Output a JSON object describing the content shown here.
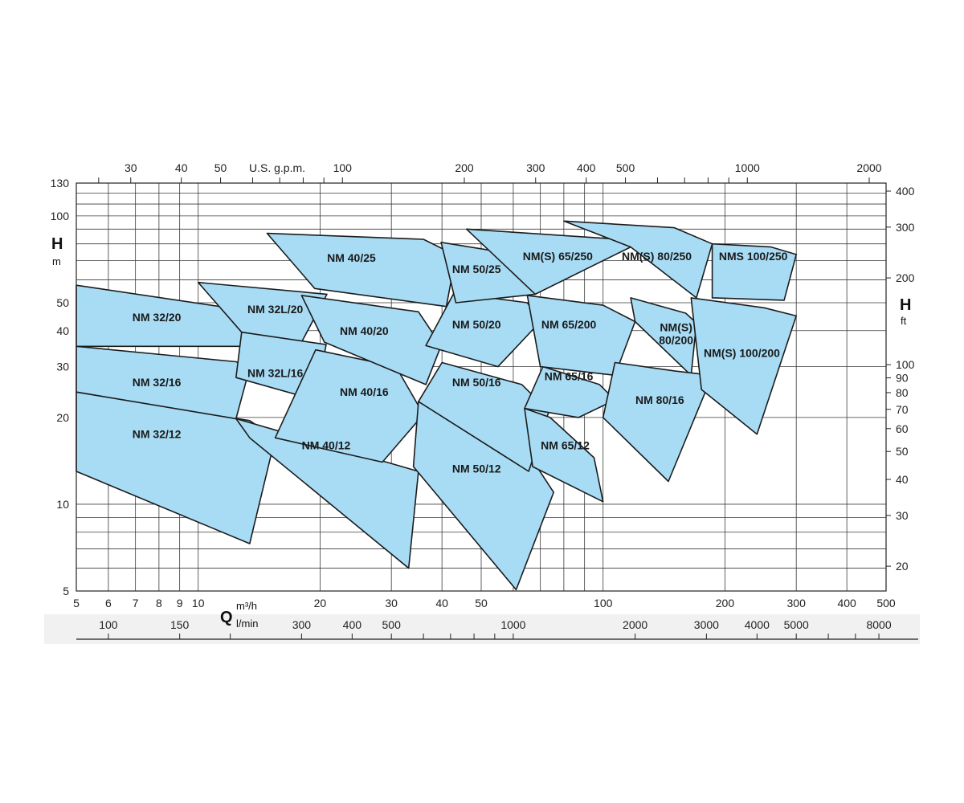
{
  "chart_data": {
    "type": "area",
    "title": "",
    "axes": {
      "x_bottom": {
        "unit_label": "m³/h",
        "scale": "log",
        "range": [
          5,
          500
        ],
        "ticks": [
          5,
          6,
          7,
          8,
          9,
          10,
          20,
          30,
          40,
          50,
          100,
          200,
          300,
          400,
          500
        ]
      },
      "x_bottom2": {
        "unit_label": "l/min",
        "scale": "log",
        "ticks": [
          100,
          150,
          300,
          400,
          500,
          1000,
          2000,
          3000,
          4000,
          5000,
          8000
        ]
      },
      "x_top": {
        "unit_label": "U.S. g.p.m.",
        "scale": "log",
        "ticks": [
          30,
          40,
          50,
          100,
          200,
          300,
          400,
          500,
          1000,
          2000
        ]
      },
      "y_left": {
        "label": "H",
        "unit_label": "m",
        "scale": "log",
        "range": [
          5,
          130
        ],
        "ticks": [
          5,
          10,
          20,
          30,
          40,
          50,
          100,
          130
        ]
      },
      "y_right": {
        "label": "H",
        "unit_label": "ft",
        "scale": "log",
        "ticks": [
          20,
          30,
          40,
          50,
          60,
          70,
          80,
          90,
          100,
          200,
          300,
          400
        ]
      },
      "bottom_label": "Q",
      "grid": true
    },
    "zones": [
      {
        "name": "NM 32/12",
        "q": [
          5,
          13.4,
          15.5,
          13.4,
          5
        ],
        "h": [
          24.5,
          19.5,
          17.0,
          7.3,
          13.0
        ],
        "label_at": [
          7.9,
          17.5
        ]
      },
      {
        "name": "NM 32/16",
        "q": [
          5,
          12.4,
          13.4,
          12.4,
          5
        ],
        "h": [
          35.3,
          31.2,
          29.7,
          19.8,
          24.5
        ],
        "label_at": [
          7.9,
          26.5
        ]
      },
      {
        "name": "NM 32/20",
        "q": [
          5,
          14.6,
          13.4,
          5
        ],
        "h": [
          57.5,
          46.0,
          35.3,
          35.3
        ],
        "label_at": [
          7.9,
          44.5
        ]
      },
      {
        "name": "NM 32L/20",
        "q": [
          10,
          20.8,
          18.0,
          12.8
        ],
        "h": [
          58.8,
          53.5,
          36.5,
          39.5
        ],
        "label_at": [
          15.5,
          47.5
        ]
      },
      {
        "name": "NM 32L/16",
        "q": [
          12.8,
          20.7,
          19.5,
          12.4
        ],
        "h": [
          39.5,
          35.8,
          23.0,
          27.5
        ],
        "label_at": [
          15.5,
          28.5
        ]
      },
      {
        "name": "NM 40/12",
        "q": [
          12.4,
          35.0,
          33.1,
          13.4
        ],
        "h": [
          19.8,
          13.0,
          6.0,
          17.0
        ],
        "label_at": [
          20.7,
          16.0
        ]
      },
      {
        "name": "NM 40/16",
        "q": [
          19.5,
          30.8,
          36.0,
          28.5,
          15.5
        ],
        "h": [
          34.3,
          30.0,
          20.5,
          14.0,
          17.0
        ],
        "label_at": [
          25.7,
          24.5
        ]
      },
      {
        "name": "NM 40/20",
        "q": [
          18.0,
          35.0,
          39.8,
          36.5,
          20.5
        ],
        "h": [
          53.0,
          46.5,
          35.5,
          26.0,
          36.5
        ],
        "label_at": [
          25.7,
          40.0
        ]
      },
      {
        "name": "NM 40/25",
        "q": [
          14.8,
          36.0,
          43.3,
          41.0,
          19.4
        ],
        "h": [
          87.0,
          83.0,
          73.0,
          48.5,
          56.0
        ],
        "label_at": [
          23.9,
          71.5
        ]
      },
      {
        "name": "NM 50/12",
        "q": [
          35.0,
          60.0,
          75.5,
          61.0,
          34.0
        ],
        "h": [
          22.7,
          18.0,
          11.0,
          5.05,
          13.5
        ],
        "label_at": [
          48.7,
          13.3
        ]
      },
      {
        "name": "NM 50/16",
        "q": [
          40.0,
          63.0,
          73.5,
          65.5,
          35.0
        ],
        "h": [
          31.0,
          26.0,
          21.0,
          13.0,
          22.7
        ],
        "label_at": [
          48.7,
          26.5
        ]
      },
      {
        "name": "NM 50/20",
        "q": [
          42.8,
          65.0,
          70.0,
          55.0,
          36.5
        ],
        "h": [
          54.0,
          50.0,
          43.0,
          30.0,
          35.5
        ],
        "label_at": [
          48.7,
          42.0
        ]
      },
      {
        "name": "NM 50/25",
        "q": [
          39.8,
          63.0,
          68.0,
          43.3
        ],
        "h": [
          81.0,
          73.0,
          53.5,
          50.0
        ],
        "label_at": [
          48.7,
          65.5
        ]
      },
      {
        "name": "NM 65/12",
        "q": [
          64.0,
          74.0,
          95.0,
          100.0,
          67.0
        ],
        "h": [
          21.5,
          20.0,
          14.5,
          10.2,
          13.5
        ],
        "label_at": [
          80.6,
          16.0
        ]
      },
      {
        "name": "NM 65/16",
        "q": [
          71.0,
          98.0,
          107.0,
          87.0,
          64.0
        ],
        "h": [
          30.0,
          26.0,
          23.0,
          20.0,
          21.5
        ],
        "label_at": [
          82.3,
          27.8
        ]
      },
      {
        "name": "NM 65/200",
        "q": [
          65.0,
          100.0,
          120.0,
          107.0,
          70.0
        ],
        "h": [
          53.0,
          49.0,
          43.0,
          28.0,
          30.0
        ],
        "label_at": [
          82.3,
          42.0
        ]
      },
      {
        "name": "NM(S) 65/250",
        "q": [
          46.0,
          110.0,
          117.0,
          68.0
        ],
        "h": [
          90.0,
          83.0,
          78.0,
          53.5
        ],
        "label_at": [
          77.3,
          72.5
        ]
      },
      {
        "name": "NM(S) 80/250",
        "q": [
          80.0,
          150.0,
          186.0,
          170.0,
          117.0
        ],
        "h": [
          96.0,
          91.0,
          80.0,
          52.0,
          78.0
        ],
        "label_at": [
          135.7,
          72.5
        ]
      },
      {
        "name": "NM(S) 80/200",
        "q": [
          117.0,
          160.0,
          170.0,
          165.0,
          120.0
        ],
        "h": [
          52.0,
          46.0,
          42.5,
          28.0,
          43.0
        ],
        "label_at": [
          151.5,
          39.0
        ]
      },
      {
        "name": "NM 80/16",
        "q": [
          107.0,
          150.0,
          186.0,
          145.0,
          100.0
        ],
        "h": [
          31.0,
          29.0,
          28.0,
          12.0,
          20.0
        ],
        "label_at": [
          138.1,
          23.0
        ]
      },
      {
        "name": "NMS 100/250",
        "q": [
          186.0,
          260.0,
          300.0,
          280.0,
          186.0
        ],
        "h": [
          80.0,
          78.0,
          73.5,
          51.0,
          52.0
        ],
        "label_at": [
          234.9,
          72.5
        ]
      },
      {
        "name": "NM(S) 100/200",
        "q": [
          165.0,
          250.0,
          300.0,
          240.0,
          175.0
        ],
        "h": [
          52.0,
          48.0,
          45.0,
          17.5,
          25.0
        ],
        "label_at": [
          220.2,
          33.5
        ]
      }
    ]
  }
}
